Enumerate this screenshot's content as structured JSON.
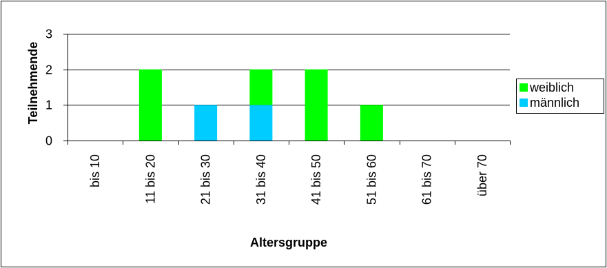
{
  "chart_data": {
    "type": "bar",
    "stacked": true,
    "categories": [
      "bis 10",
      "11 bis 20",
      "21 bis 30",
      "31 bis 40",
      "41 bis 50",
      "51 bis 60",
      "61 bis 70",
      "über 70"
    ],
    "series": [
      {
        "name": "männlich",
        "values": [
          0,
          0,
          1,
          1,
          0,
          0,
          0,
          0
        ],
        "color": "#00ccff"
      },
      {
        "name": "weiblich",
        "values": [
          0,
          2,
          0,
          1,
          2,
          1,
          0,
          0
        ],
        "color": "#00ff00"
      }
    ],
    "legend_order": [
      "weiblich",
      "männlich"
    ],
    "xlabel": "Altersgruppe",
    "ylabel": "Teilnehmende",
    "ylim": [
      0,
      3
    ],
    "yticks": [
      0,
      1,
      2,
      3
    ],
    "grid": true,
    "legend_position": "right"
  }
}
